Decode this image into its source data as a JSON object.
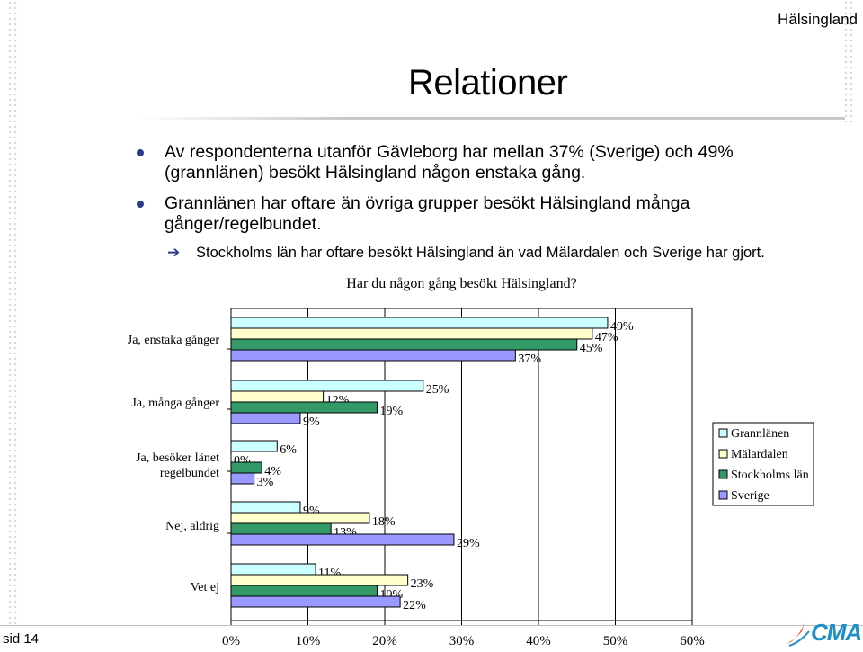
{
  "header": {
    "region": "Hälsingland",
    "title": "Relationer"
  },
  "bullets": [
    {
      "text": "Av respondenterna utanför Gävleborg har mellan 37% (Sverige) och 49% (grannlänen) besökt Hälsingland någon enstaka gång."
    },
    {
      "text": "Grannlänen har oftare än övriga grupper besökt Hälsingland många gånger/regelbundet."
    }
  ],
  "sub_bullet": {
    "text": "Stockholms län har oftare besökt Hälsingland än vad Mälardalen och Sverige har gjort."
  },
  "colors": {
    "grannlanen": "#ccffff",
    "malardalen": "#ffffcc",
    "stockholm": "#339966",
    "sverige": "#9999ff",
    "bullet": "#2a3a8c",
    "logo": "#1e8fc8"
  },
  "chart_data": {
    "type": "bar",
    "orientation": "horizontal",
    "title": "Har du någon gång besökt Hälsingland?",
    "categories": [
      "Ja, enstaka gånger",
      "Ja, många gånger",
      "Ja, besöker länet regelbundet",
      "Nej, aldrig",
      "Vet ej"
    ],
    "series": [
      {
        "name": "Grannlänen",
        "values": [
          49,
          25,
          6,
          9,
          11
        ]
      },
      {
        "name": "Mälardalen",
        "values": [
          47,
          12,
          0,
          18,
          23
        ]
      },
      {
        "name": "Stockholms län",
        "values": [
          45,
          19,
          4,
          13,
          19
        ]
      },
      {
        "name": "Sverige",
        "values": [
          37,
          9,
          3,
          29,
          22
        ]
      }
    ],
    "xlim": [
      0,
      60
    ],
    "xticks": [
      "0%",
      "10%",
      "20%",
      "30%",
      "40%",
      "50%",
      "60%"
    ],
    "legend_position": "right",
    "grid": true
  },
  "footer": {
    "page": "sid 14",
    "logo_text": "CMA"
  }
}
